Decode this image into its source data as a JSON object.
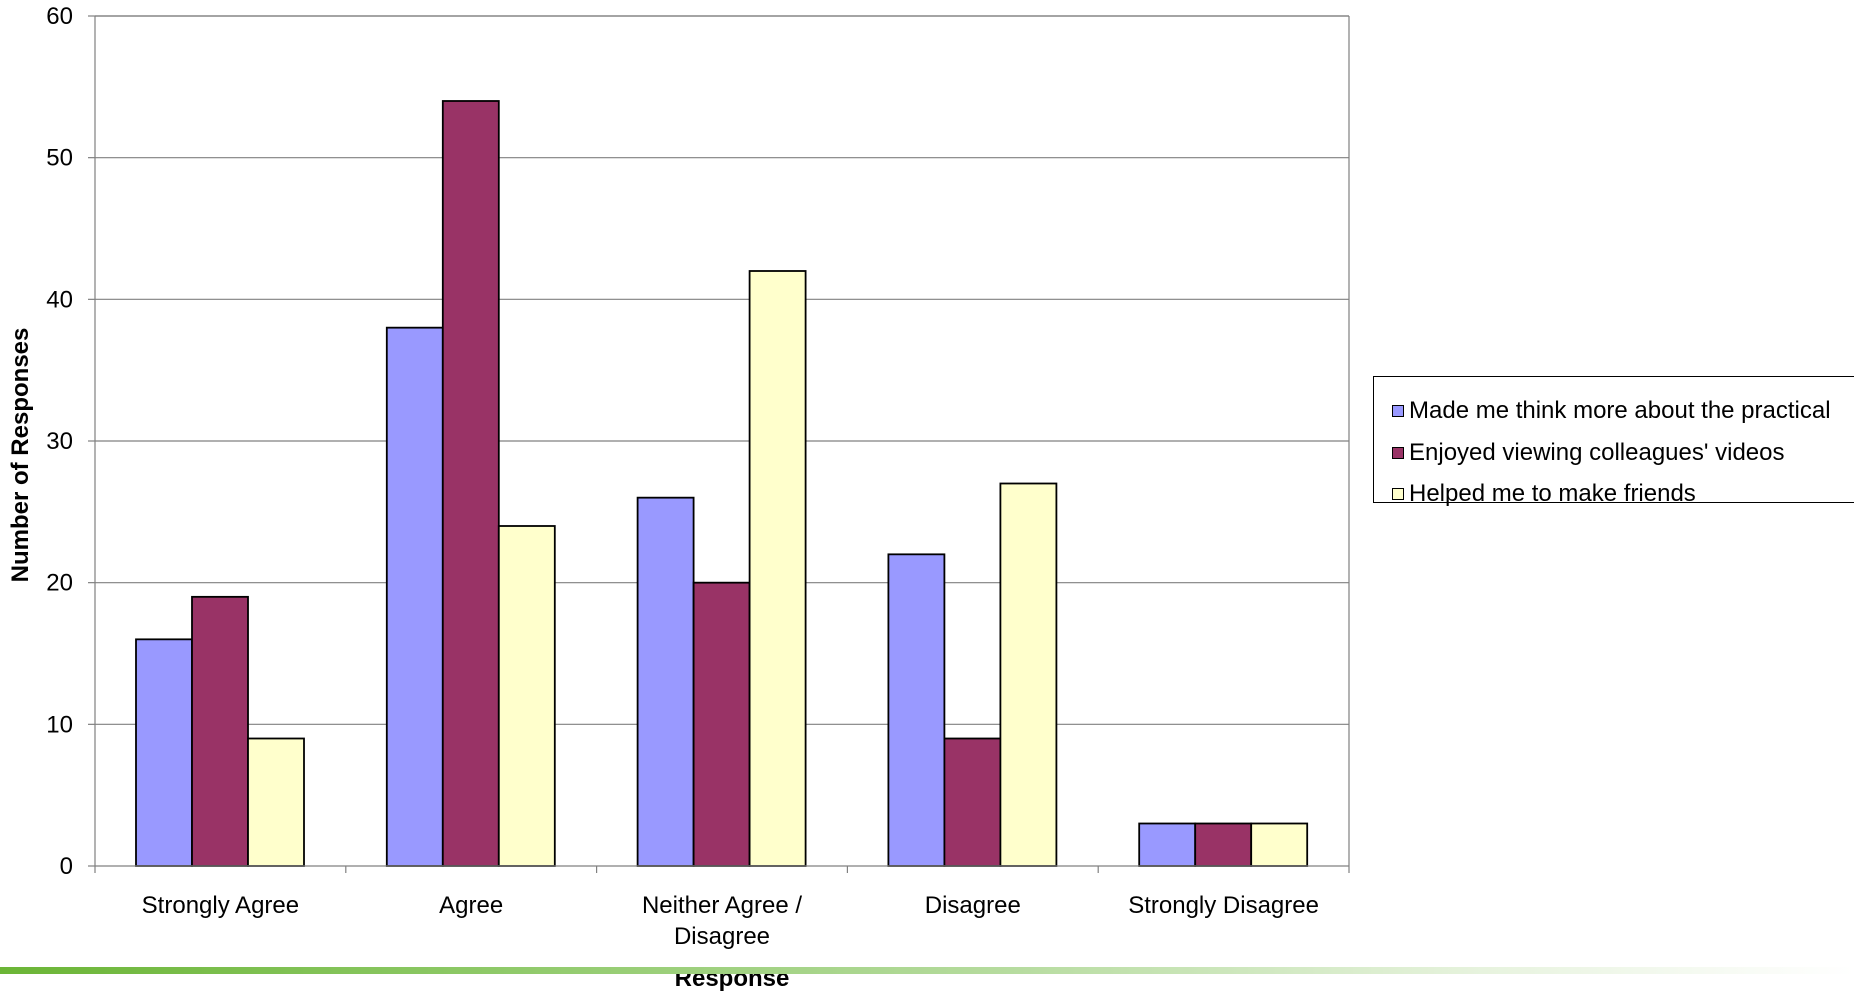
{
  "chart_data": {
    "type": "bar",
    "title": "",
    "xlabel": "Response",
    "ylabel": "Number of Responses",
    "ylim": [
      0,
      60
    ],
    "yticks": [
      0,
      10,
      20,
      30,
      40,
      50,
      60
    ],
    "grid": true,
    "legend_position": "right",
    "categories": [
      [
        "Strongly Agree"
      ],
      [
        "Agree"
      ],
      [
        "Neither Agree /",
        "Disagree"
      ],
      [
        "Disagree"
      ],
      [
        "Strongly Disagree"
      ]
    ],
    "series": [
      {
        "name": "Made me think more about the practical",
        "color": "#9999FF",
        "values": [
          16,
          38,
          26,
          22,
          3
        ]
      },
      {
        "name": "Enjoyed viewing colleagues' videos",
        "color": "#993366",
        "values": [
          19,
          54,
          20,
          9,
          3
        ]
      },
      {
        "name": "Helped me to make friends",
        "color": "#FFFFCC",
        "values": [
          9,
          24,
          42,
          27,
          3
        ]
      }
    ]
  }
}
